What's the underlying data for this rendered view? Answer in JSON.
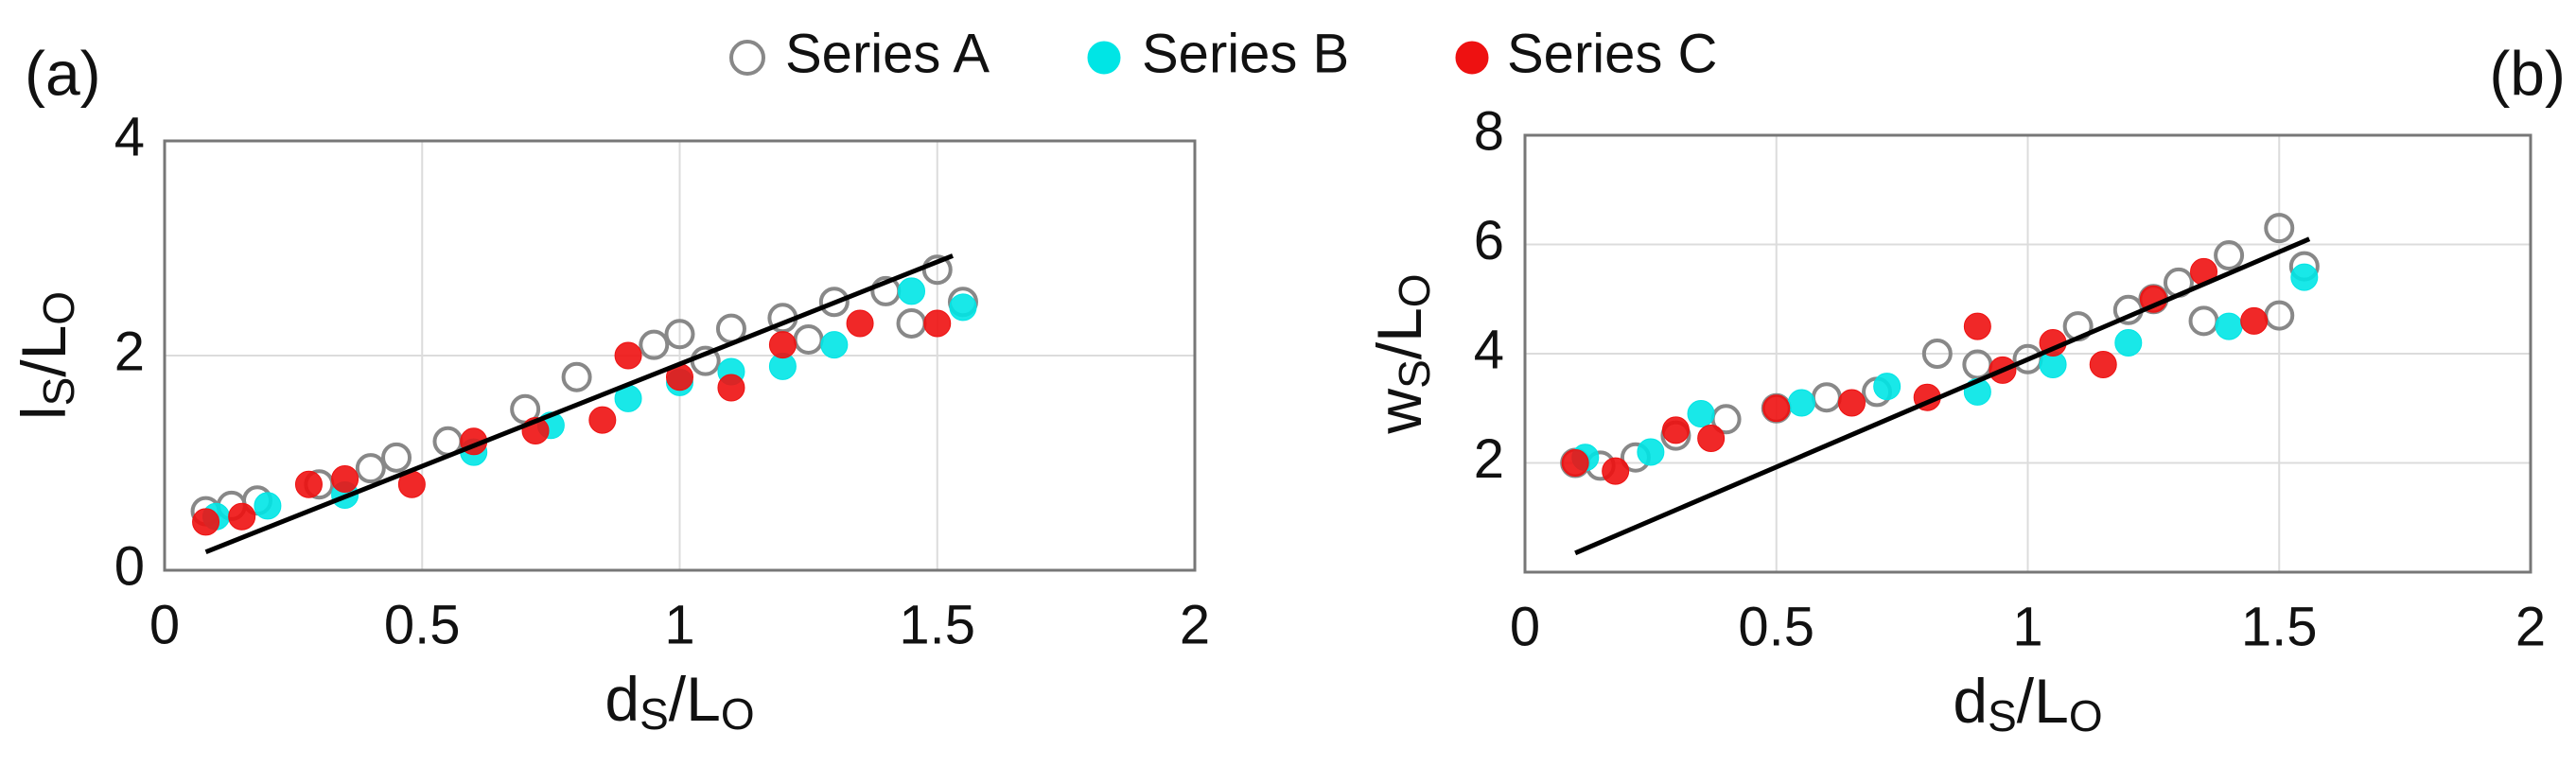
{
  "chart_data": [
    {
      "type": "scatter",
      "panel_label": "(a)",
      "xlabel": [
        "d",
        "S",
        "/L",
        "O"
      ],
      "ylabel": [
        "l",
        "S",
        "/L",
        "O"
      ],
      "xlim": [
        0,
        2
      ],
      "xticks": [
        0,
        0.5,
        1,
        1.5,
        2
      ],
      "ylim": [
        0,
        4
      ],
      "yticks": [
        0,
        2,
        4
      ],
      "grid": true,
      "series": [
        {
          "name": "Series A",
          "color": "#888888",
          "marker": "open",
          "x": [
            0.08,
            0.13,
            0.18,
            0.3,
            0.4,
            0.45,
            0.55,
            0.7,
            0.8,
            0.95,
            1.0,
            1.1,
            1.2,
            1.3,
            1.4,
            1.5,
            1.55,
            1.45,
            1.25,
            1.05
          ],
          "values": [
            0.55,
            0.6,
            0.65,
            0.8,
            0.95,
            1.05,
            1.2,
            1.5,
            1.8,
            2.1,
            2.2,
            2.25,
            2.35,
            2.5,
            2.6,
            2.8,
            2.5,
            2.3,
            2.15,
            1.95
          ]
        },
        {
          "name": "Series B",
          "color": "#00e5e5",
          "marker": "filled",
          "x": [
            0.1,
            0.2,
            0.35,
            0.6,
            0.75,
            0.9,
            1.1,
            1.3,
            1.45,
            1.55,
            1.2,
            1.0
          ],
          "values": [
            0.5,
            0.6,
            0.7,
            1.1,
            1.35,
            1.6,
            1.85,
            2.1,
            2.6,
            2.45,
            1.9,
            1.75
          ]
        },
        {
          "name": "Series C",
          "color": "#ee1111",
          "marker": "filled",
          "x": [
            0.08,
            0.15,
            0.28,
            0.35,
            0.48,
            0.6,
            0.72,
            0.85,
            0.9,
            1.0,
            1.1,
            1.2,
            1.35,
            1.5
          ],
          "values": [
            0.45,
            0.5,
            0.8,
            0.85,
            0.8,
            1.2,
            1.3,
            1.4,
            2.0,
            1.8,
            1.7,
            2.1,
            2.3,
            2.3
          ]
        }
      ],
      "fit": {
        "color": "#000000",
        "x": [
          0.08,
          1.53
        ],
        "values": [
          0.17,
          2.93
        ]
      }
    },
    {
      "type": "scatter",
      "panel_label": "(b)",
      "xlabel": [
        "d",
        "S",
        "/L",
        "O"
      ],
      "ylabel": [
        "w",
        "S",
        "/L",
        "O"
      ],
      "xlim": [
        0,
        2
      ],
      "xticks": [
        0,
        0.5,
        1,
        1.5,
        2
      ],
      "ylim": [
        0,
        8
      ],
      "yticks": [
        2,
        4,
        6,
        8
      ],
      "grid": true,
      "series": [
        {
          "name": "Series A",
          "color": "#888888",
          "marker": "open",
          "x": [
            0.1,
            0.15,
            0.22,
            0.3,
            0.4,
            0.5,
            0.6,
            0.7,
            0.82,
            0.9,
            1.0,
            1.1,
            1.2,
            1.3,
            1.4,
            1.5,
            1.55,
            1.5,
            1.35,
            1.25
          ],
          "values": [
            2.0,
            1.95,
            2.1,
            2.5,
            2.8,
            3.0,
            3.2,
            3.3,
            4.0,
            3.8,
            3.9,
            4.5,
            4.8,
            5.3,
            5.8,
            6.3,
            5.6,
            4.7,
            4.6,
            5.0
          ]
        },
        {
          "name": "Series B",
          "color": "#00e5e5",
          "marker": "filled",
          "x": [
            0.12,
            0.25,
            0.35,
            0.55,
            0.72,
            0.9,
            1.05,
            1.2,
            1.4,
            1.55
          ],
          "values": [
            2.1,
            2.2,
            2.9,
            3.1,
            3.4,
            3.3,
            3.8,
            4.2,
            4.5,
            5.4
          ]
        },
        {
          "name": "Series C",
          "color": "#ee1111",
          "marker": "filled",
          "x": [
            0.1,
            0.18,
            0.3,
            0.37,
            0.5,
            0.65,
            0.8,
            0.9,
            0.95,
            1.05,
            1.15,
            1.25,
            1.35,
            1.45
          ],
          "values": [
            2.0,
            1.85,
            2.6,
            2.45,
            3.0,
            3.1,
            3.2,
            4.5,
            3.7,
            4.2,
            3.8,
            5.0,
            5.5,
            4.6
          ]
        }
      ],
      "fit": {
        "color": "#000000",
        "x": [
          0.1,
          1.56
        ],
        "values": [
          0.35,
          6.1
        ]
      }
    }
  ]
}
